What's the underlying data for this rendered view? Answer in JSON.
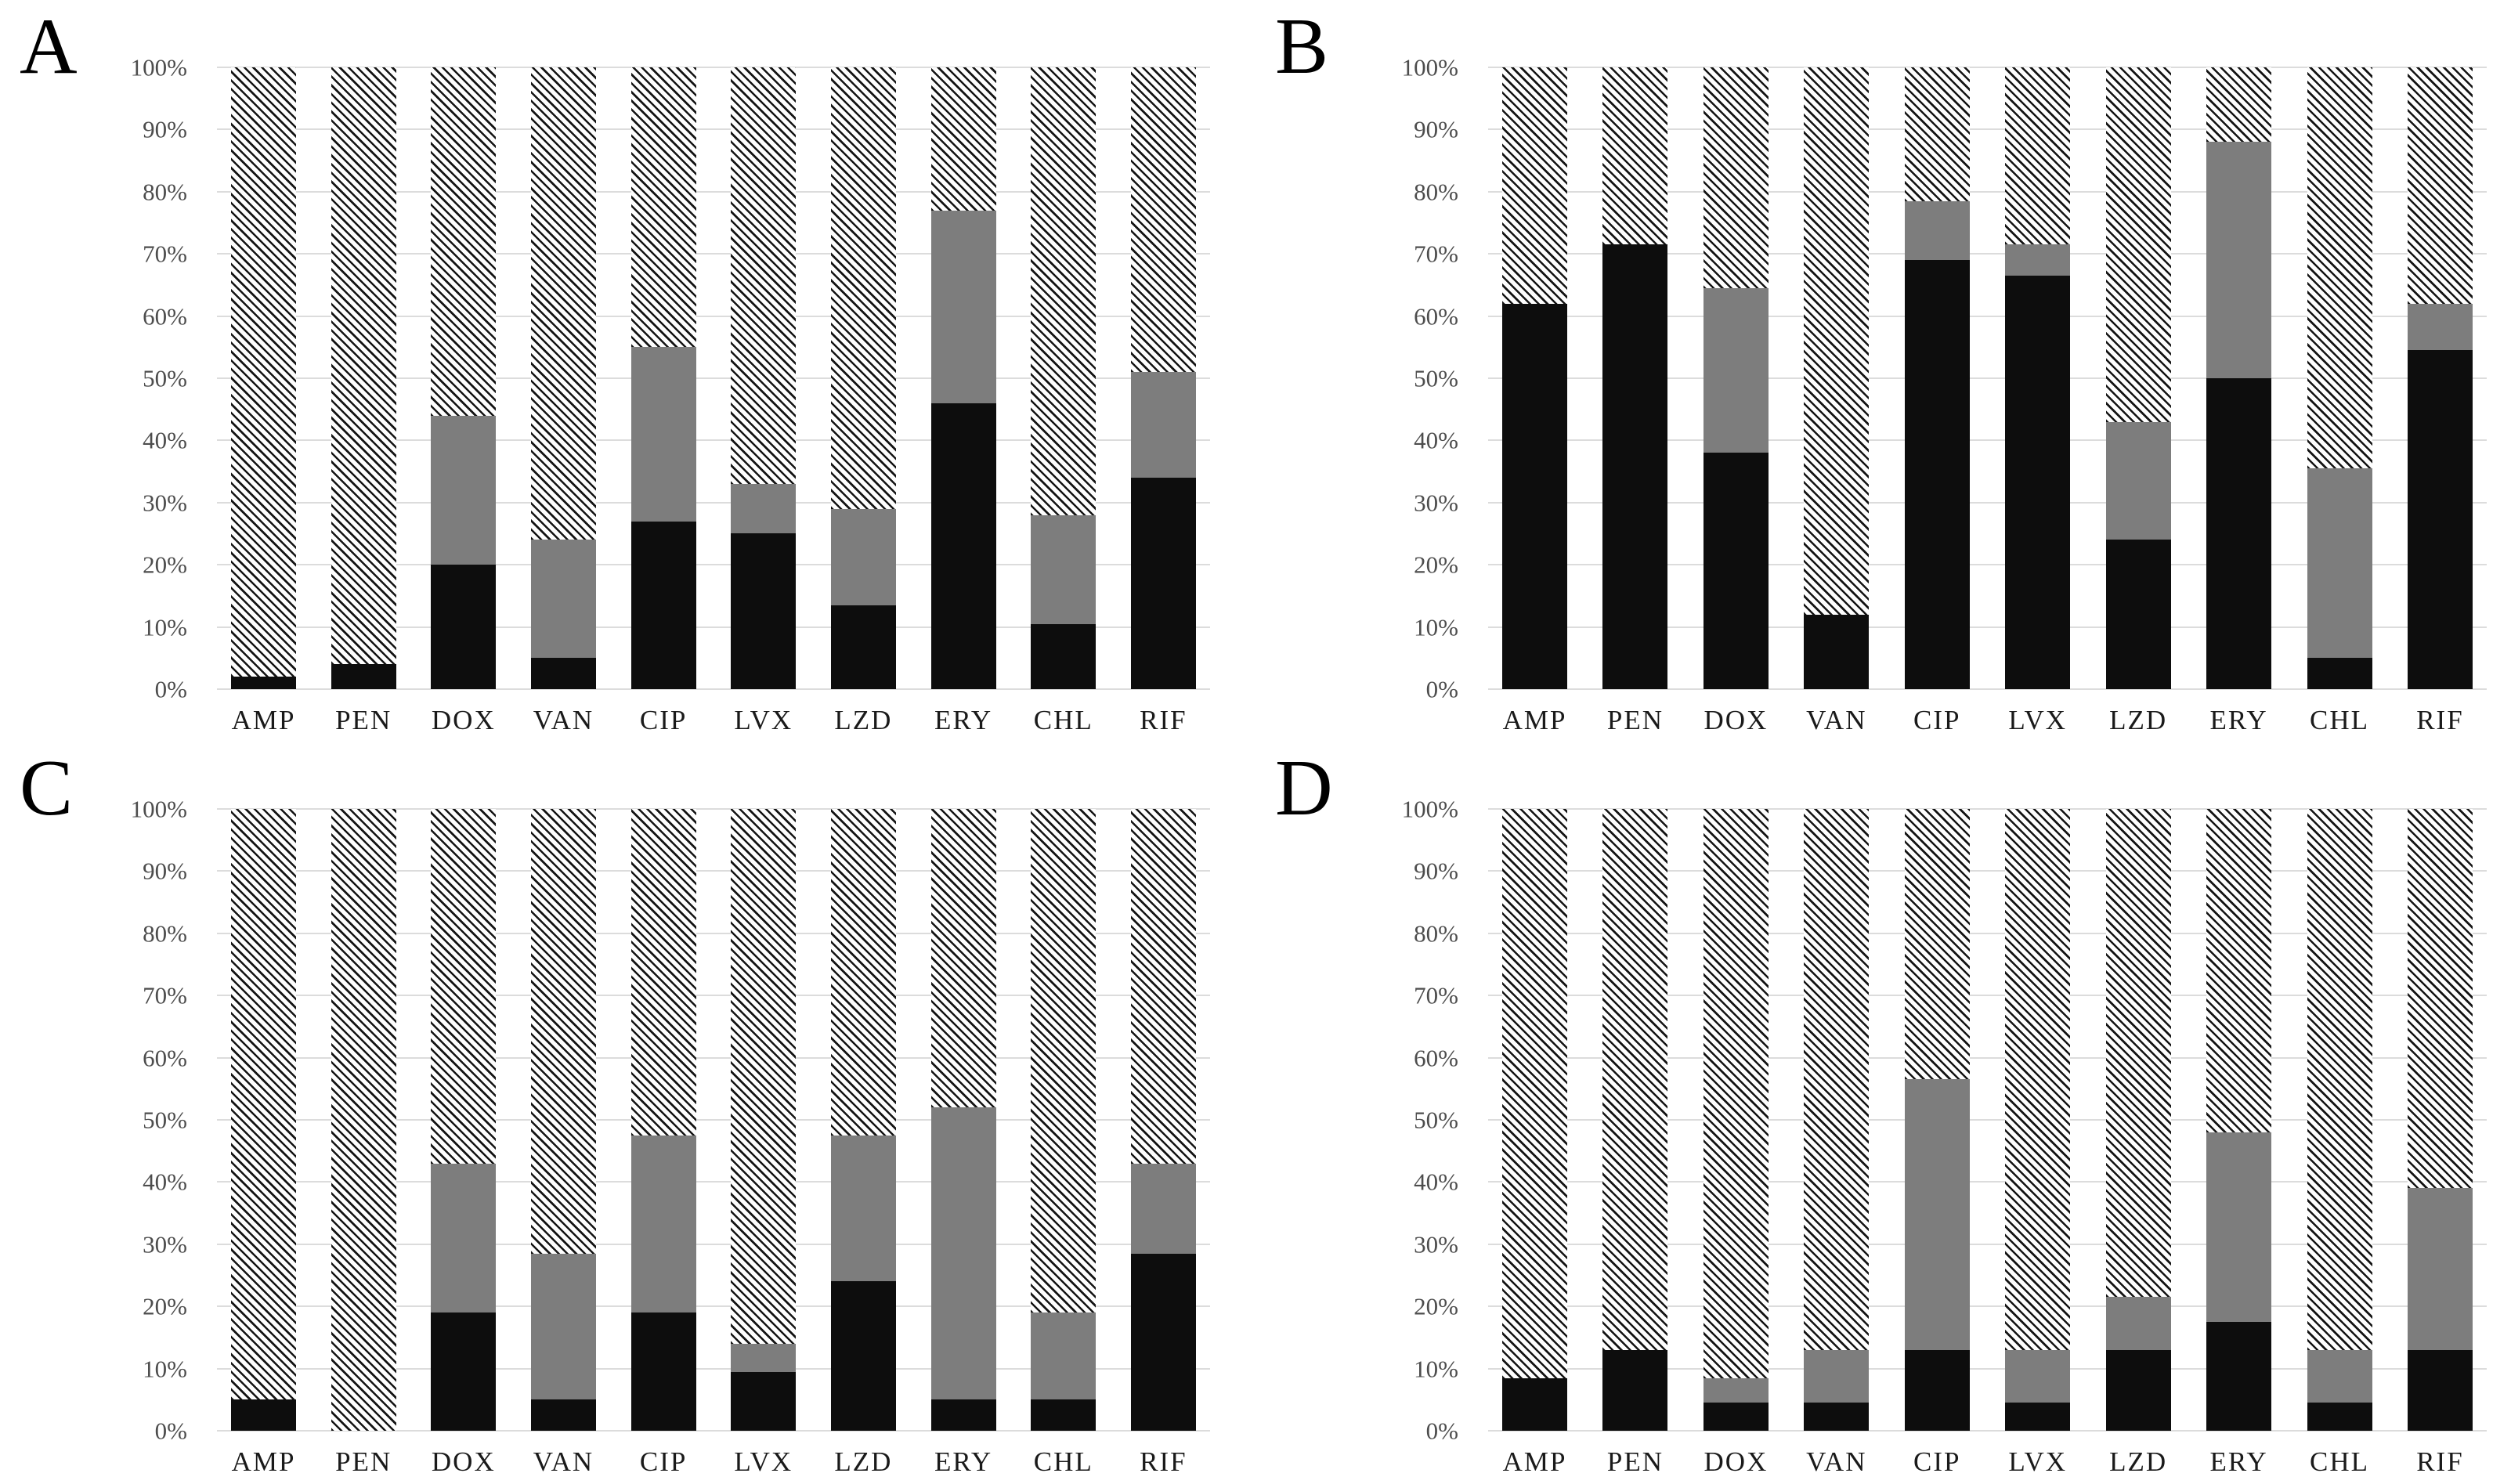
{
  "figure": {
    "background": "#ffffff",
    "panel_letters": [
      "A",
      "B",
      "C",
      "D"
    ]
  },
  "colors": {
    "black_segment": "#0d0d0d",
    "gray_segment": "#7d7d7d",
    "hatch_line": "#141414",
    "hatch_background": "#fdfdfd",
    "gridline": "#dcdcdc",
    "y_tick_label": "#4d4d4d",
    "x_category_label": "#1a1a1a",
    "panel_letter": "#000000"
  },
  "chart_data": [
    {
      "panel": "A",
      "type": "bar",
      "stacked": true,
      "orientation": "vertical",
      "grid": true,
      "legend": "none",
      "ylim": [
        0,
        100
      ],
      "y_ticks": [
        "0%",
        "10%",
        "20%",
        "30%",
        "40%",
        "50%",
        "60%",
        "70%",
        "80%",
        "90%",
        "100%"
      ],
      "categories": [
        "AMP",
        "PEN",
        "DOX",
        "VAN",
        "CIP",
        "LVX",
        "LZD",
        "ERY",
        "CHL",
        "RIF"
      ],
      "series": [
        {
          "name": "black",
          "color": "#0d0d0d",
          "values": [
            2,
            4,
            20,
            5,
            27,
            25,
            13.5,
            46,
            10.5,
            34
          ]
        },
        {
          "name": "gray",
          "color": "#7d7d7d",
          "values": [
            0,
            0,
            24,
            19,
            28,
            8,
            15.5,
            31,
            17.5,
            17
          ]
        },
        {
          "name": "hatched",
          "pattern": "diagonal-stripes",
          "values": [
            98,
            96,
            56,
            76,
            45,
            67,
            71,
            23,
            72,
            49
          ]
        }
      ]
    },
    {
      "panel": "B",
      "type": "bar",
      "stacked": true,
      "orientation": "vertical",
      "grid": true,
      "legend": "none",
      "ylim": [
        0,
        100
      ],
      "y_ticks": [
        "0%",
        "10%",
        "20%",
        "30%",
        "40%",
        "50%",
        "60%",
        "70%",
        "80%",
        "90%",
        "100%"
      ],
      "categories": [
        "AMP",
        "PEN",
        "DOX",
        "VAN",
        "CIP",
        "LVX",
        "LZD",
        "ERY",
        "CHL",
        "RIF"
      ],
      "series": [
        {
          "name": "black",
          "color": "#0d0d0d",
          "values": [
            62,
            71.5,
            38,
            12,
            69,
            66.5,
            24,
            50,
            5,
            54.5
          ]
        },
        {
          "name": "gray",
          "color": "#7d7d7d",
          "values": [
            0,
            0,
            26.5,
            0,
            9.5,
            5,
            19,
            38,
            30.5,
            7.5
          ]
        },
        {
          "name": "hatched",
          "pattern": "diagonal-stripes",
          "values": [
            38,
            28.5,
            35.5,
            88,
            21.5,
            28.5,
            57,
            12,
            64.5,
            38
          ]
        }
      ]
    },
    {
      "panel": "C",
      "type": "bar",
      "stacked": true,
      "orientation": "vertical",
      "grid": true,
      "legend": "none",
      "ylim": [
        0,
        100
      ],
      "y_ticks": [
        "0%",
        "10%",
        "20%",
        "30%",
        "40%",
        "50%",
        "60%",
        "70%",
        "80%",
        "90%",
        "100%"
      ],
      "categories": [
        "AMP",
        "PEN",
        "DOX",
        "VAN",
        "CIP",
        "LVX",
        "LZD",
        "ERY",
        "CHL",
        "RIF"
      ],
      "series": [
        {
          "name": "black",
          "color": "#0d0d0d",
          "values": [
            5,
            0,
            19,
            5,
            19,
            9.5,
            24,
            5,
            5,
            28.5
          ]
        },
        {
          "name": "gray",
          "color": "#7d7d7d",
          "values": [
            0,
            0,
            24,
            23.5,
            28.5,
            4.5,
            23.5,
            47,
            14,
            14.5
          ]
        },
        {
          "name": "hatched",
          "pattern": "diagonal-stripes",
          "values": [
            95,
            100,
            57,
            71.5,
            52.5,
            86,
            52.5,
            48,
            81,
            57
          ]
        }
      ]
    },
    {
      "panel": "D",
      "type": "bar",
      "stacked": true,
      "orientation": "vertical",
      "grid": true,
      "legend": "none",
      "ylim": [
        0,
        100
      ],
      "y_ticks": [
        "0%",
        "10%",
        "20%",
        "30%",
        "40%",
        "50%",
        "60%",
        "70%",
        "80%",
        "90%",
        "100%"
      ],
      "categories": [
        "AMP",
        "PEN",
        "DOX",
        "VAN",
        "CIP",
        "LVX",
        "LZD",
        "ERY",
        "CHL",
        "RIF"
      ],
      "series": [
        {
          "name": "black",
          "color": "#0d0d0d",
          "values": [
            8.5,
            13,
            4.5,
            4.5,
            13,
            4.5,
            13,
            17.5,
            4.5,
            13
          ]
        },
        {
          "name": "gray",
          "color": "#7d7d7d",
          "values": [
            0,
            0,
            4,
            8.5,
            43.5,
            8.5,
            8.5,
            30.5,
            8.5,
            26
          ]
        },
        {
          "name": "hatched",
          "pattern": "diagonal-stripes",
          "values": [
            91.5,
            87,
            91.5,
            87,
            43.5,
            87,
            78.5,
            52,
            87,
            61
          ]
        }
      ]
    }
  ]
}
